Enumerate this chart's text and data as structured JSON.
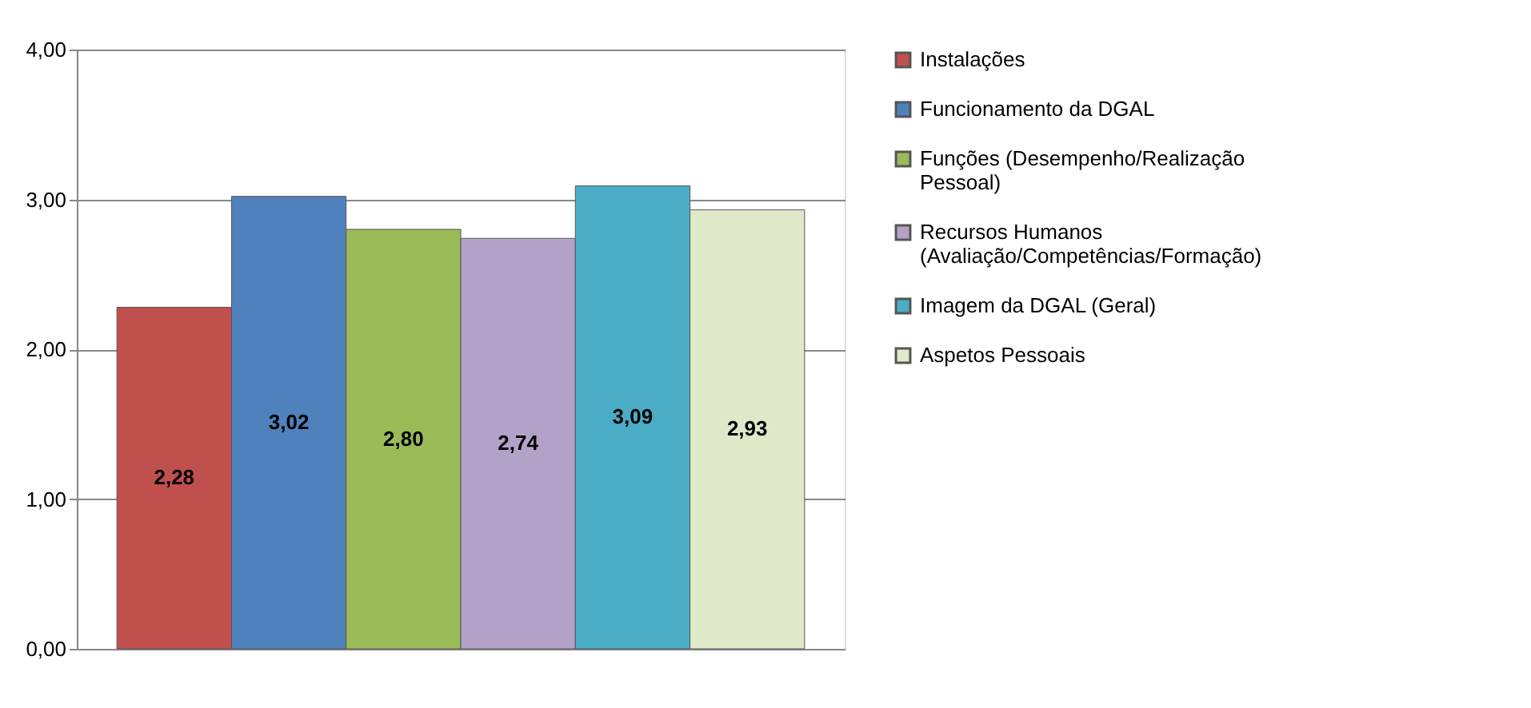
{
  "chart_data": {
    "type": "bar",
    "categories": [
      null,
      null,
      null,
      null,
      null,
      null
    ],
    "series": [
      {
        "name": "Instalações",
        "color": "#c0504d",
        "values": [
          2.28,
          null,
          null,
          null,
          null,
          null
        ]
      },
      {
        "name": "Funcionamento da DGAL",
        "color": "#4f81bd",
        "values": [
          null,
          3.02,
          null,
          null,
          null,
          null
        ]
      },
      {
        "name": "Funções (Desempenho/Realização Pessoal)",
        "color": "#9bbb59",
        "values": [
          null,
          null,
          2.8,
          null,
          null,
          null
        ]
      },
      {
        "name": "Recursos Humanos (Avaliação/Competências/Formação)",
        "color": "#b3a2c7",
        "values": [
          null,
          null,
          null,
          2.74,
          null,
          null
        ]
      },
      {
        "name": "Imagem da DGAL (Geral)",
        "color": "#4bacc6",
        "values": [
          null,
          null,
          null,
          null,
          3.09,
          null
        ]
      },
      {
        "name": "Aspetos Pessoais",
        "color": "#dfe8c8",
        "values": [
          null,
          null,
          null,
          null,
          null,
          2.93
        ]
      }
    ],
    "value_labels": [
      "2,28",
      "3,02",
      "2,80",
      "2,74",
      "3,09",
      "2,93"
    ],
    "ylim": [
      0,
      4
    ],
    "yticks": [
      {
        "value": 0,
        "label": "0,00"
      },
      {
        "value": 1,
        "label": "1,00"
      },
      {
        "value": 2,
        "label": "2,00"
      },
      {
        "value": 3,
        "label": "3,00"
      },
      {
        "value": 4,
        "label": "4,00"
      }
    ],
    "grid": "y",
    "legend": "right",
    "tick_labels": "y"
  }
}
